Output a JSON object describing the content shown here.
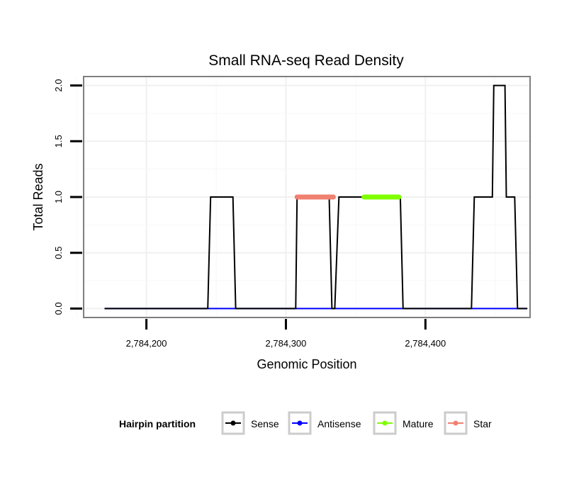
{
  "chart_data": {
    "type": "line",
    "title": "Small RNA-seq Read Density",
    "xlabel": "Genomic Position",
    "ylabel": "Total Reads",
    "xlim": [
      2784155,
      2784475
    ],
    "ylim": [
      -0.08,
      2.08
    ],
    "x_ticks": [
      2784200,
      2784300,
      2784400
    ],
    "x_tick_labels": [
      "2,784,200",
      "2,784,300",
      "2,784,400"
    ],
    "y_ticks": [
      0,
      0.5,
      1,
      1.5,
      2
    ],
    "y_tick_labels": [
      "0.0",
      "0.5",
      "1.0",
      "1.5",
      "2.0"
    ],
    "grid": true,
    "legend": {
      "title": "Hairpin partition",
      "position": "bottom",
      "entries": [
        {
          "name": "Sense",
          "color": "#000000"
        },
        {
          "name": "Antisense",
          "color": "#0000ff"
        },
        {
          "name": "Mature",
          "color": "#7fff00"
        },
        {
          "name": "Star",
          "color": "#f08070"
        }
      ]
    },
    "series": [
      {
        "name": "Sense",
        "color": "#000000",
        "x": [
          2784170,
          2784244,
          2784246,
          2784262,
          2784264,
          2784307,
          2784308,
          2784331,
          2784333,
          2784335,
          2784338,
          2784361,
          2784363,
          2784382,
          2784384,
          2784433,
          2784435,
          2784448,
          2784449,
          2784457,
          2784458,
          2784464,
          2784466,
          2784473
        ],
        "y": [
          0,
          0,
          1,
          1,
          0,
          0,
          1,
          1,
          0,
          0,
          1,
          1,
          1,
          1,
          0,
          0,
          1,
          1,
          2,
          2,
          1,
          1,
          0,
          0
        ]
      },
      {
        "name": "Antisense",
        "color": "#0000ff",
        "x": [
          2784170,
          2784473
        ],
        "y": [
          0,
          0
        ]
      },
      {
        "name": "Mature",
        "color": "#7fff00",
        "x": [
          2784356,
          2784381
        ],
        "y": [
          1,
          1
        ]
      },
      {
        "name": "Star",
        "color": "#f08070",
        "x": [
          2784308,
          2784334
        ],
        "y": [
          1,
          1
        ]
      }
    ]
  }
}
